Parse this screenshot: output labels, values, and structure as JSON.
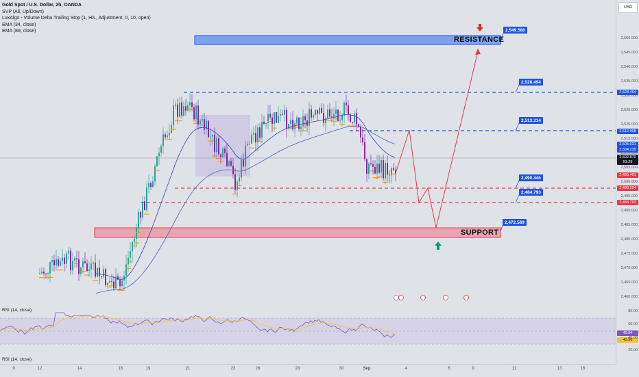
{
  "legend": {
    "title": "Gold Spot / U.S. Dollar, 2h, OANDA",
    "indicators": [
      "SVP (All, Up/Down)",
      "LuxAlgo - Volume Delta Trailing Stop (1, H/L, Adjustment, 0, 10, open)",
      "EMA (34, close)",
      "EMA (89, close)"
    ]
  },
  "currency": "USD",
  "price_ticks": [
    "2,550.000",
    "2,545.000",
    "2,540.000",
    "2,535.000",
    "2,530.000",
    "2,525.000",
    "2,520.000",
    "2,515.000",
    "2,510.000",
    "2,505.000",
    "2,500.000",
    "2,495.000",
    "2,490.000",
    "2,485.000",
    "2,480.000",
    "2,475.000",
    "2,470.000",
    "2,465.000",
    "2,460.000",
    "2,455.000",
    "2,450.000",
    "2,445.000"
  ],
  "scale_labels": [
    {
      "text": "2,528.494",
      "color": "#1e53e5"
    },
    {
      "text": "2,512.908",
      "color": "#1e53e5"
    },
    {
      "text": "2,505.031",
      "color": "#1e53e5"
    },
    {
      "text": "2,504.235",
      "color": "#1e53e5"
    },
    {
      "text": "2,502.870",
      "color": "#131722"
    },
    {
      "text": "51:29",
      "color": "#131722"
    },
    {
      "text": "2,495.491",
      "color": "#f23645"
    },
    {
      "text": "2,490.294",
      "color": "#f23645"
    },
    {
      "text": "2,484.793",
      "color": "#f23645"
    }
  ],
  "zones": {
    "resistance_label": "RESISTANCE",
    "support_label": "SUPPORT"
  },
  "callouts": [
    "2,549.580",
    "2,528.494",
    "2,513.214",
    "2,490.446",
    "2,484.793",
    "2,472.569"
  ],
  "rsi": {
    "title": "RSI (14, close)",
    "title2": "RSI (14, close)",
    "ticks": [
      "80.00",
      "60.00",
      "40.00",
      "20.00"
    ],
    "value_purple": "49.84",
    "value_yellow": "43.56"
  },
  "time_labels": [
    "9",
    "12",
    "14",
    "16",
    "19",
    "21",
    "23",
    "26",
    "28",
    "30",
    "Sep",
    "4",
    "6",
    "9",
    "11",
    "13",
    "16"
  ],
  "colors": {
    "bull": "#26a69a",
    "bear": "#8e24aa",
    "resistance_zone": "#5b8def",
    "support_zone": "#ef5b6a",
    "blue_line": "#1e53e5",
    "red_line": "#f23645",
    "projection": "#f23645"
  }
}
